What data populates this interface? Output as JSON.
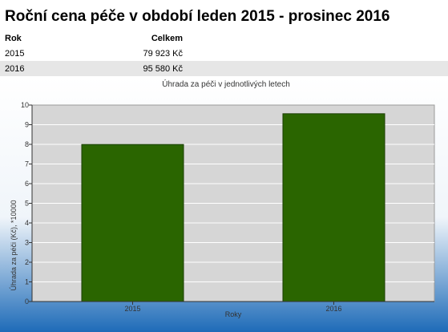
{
  "page": {
    "title": "Roční cena péče v období leden 2015 - prosinec 2016"
  },
  "table": {
    "headers": {
      "year": "Rok",
      "total": "Celkem"
    },
    "rows": [
      {
        "year": "2015",
        "total": "79 923 Kč"
      },
      {
        "year": "2016",
        "total": "95 580 Kč"
      }
    ]
  },
  "colors": {
    "bar": "#2a6500",
    "plot_background": "#d6d6d6",
    "outer_gradient_top": "#ffffff",
    "outer_gradient_bottom": "#1e6bb8",
    "alt_row": "#e6e6e6"
  },
  "chart_data": {
    "type": "bar",
    "title": "Úhrada za péči v jednotlivých letech",
    "xlabel": "Roky",
    "ylabel": "Úhrada za péči (Kč), *10000",
    "categories": [
      "2015",
      "2016"
    ],
    "values": [
      7.9923,
      9.558
    ],
    "ylim": [
      0,
      10
    ],
    "yticks": [
      0,
      1,
      2,
      3,
      4,
      5,
      6,
      7,
      8,
      9,
      10
    ],
    "grid": true
  }
}
